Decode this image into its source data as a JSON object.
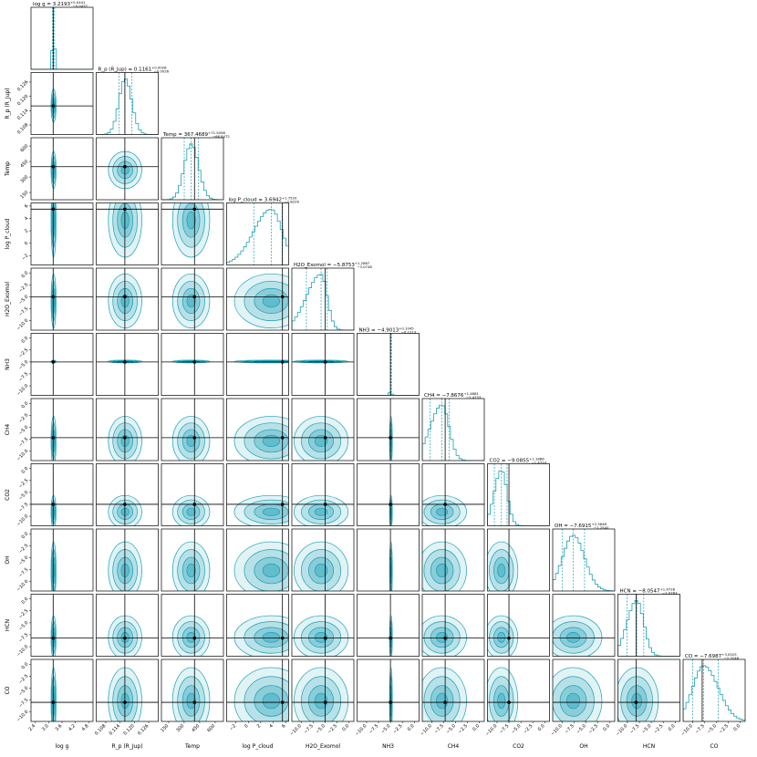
{
  "chart_data": {
    "type": "corner",
    "color": "#1a9fb5",
    "truth_color": "#000000",
    "params": [
      {
        "label": "log g",
        "title": "log g = 3.2193",
        "err_plus": "+0.0441",
        "err_minus": "−0.0437",
        "quantiles": [
          3.1756,
          3.2193,
          3.2634
        ],
        "truth": 3.2,
        "lim": [
          2.2,
          5.0
        ],
        "ticks": [
          {
            "value": 2.4,
            "label": "2.4"
          },
          {
            "value": 3.0,
            "label": "3.0"
          },
          {
            "value": 3.6,
            "label": "3.6"
          },
          {
            "value": 4.2,
            "label": "4.2"
          },
          {
            "value": 4.8,
            "label": "4.8"
          }
        ]
      },
      {
        "label": "R_p (R_Jup)",
        "title": "R_p (R_Jup) = 0.1161",
        "err_plus": "+0.0028",
        "err_minus": "−0.0026",
        "quantiles": [
          0.1135,
          0.1161,
          0.1189
        ],
        "truth": 0.116,
        "lim": [
          0.104,
          0.13
        ],
        "ticks": [
          {
            "value": 0.108,
            "label": "0.108"
          },
          {
            "value": 0.114,
            "label": "0.114"
          },
          {
            "value": 0.12,
            "label": "0.120"
          },
          {
            "value": 0.126,
            "label": "0.126"
          }
        ]
      },
      {
        "label": "Temp",
        "title": "Temp = 367.4689",
        "err_plus": "+71.5098",
        "err_minus": "−66.8472",
        "quantiles": [
          300.6217,
          367.4689,
          438.9787
        ],
        "truth": 400,
        "lim": [
          80,
          680
        ],
        "ticks": [
          {
            "value": 150,
            "label": "150"
          },
          {
            "value": 300,
            "label": "300"
          },
          {
            "value": 450,
            "label": "450"
          },
          {
            "value": 600,
            "label": "600"
          }
        ]
      },
      {
        "label": "log P_cloud",
        "title": "log P_cloud = 3.6942",
        "err_plus": "+1.7520",
        "err_minus": "−2.8226",
        "quantiles": [
          0.8716,
          3.6942,
          5.4462
        ],
        "truth": 5.5,
        "lim": [
          -3.5,
          6.5
        ],
        "ticks": [
          {
            "value": -2,
            "label": "−2"
          },
          {
            "value": 0,
            "label": "0"
          },
          {
            "value": 2,
            "label": "2"
          },
          {
            "value": 4,
            "label": "4"
          },
          {
            "value": 6,
            "label": "6"
          }
        ]
      },
      {
        "label": "H2O_Exomol",
        "title": "H2O_Exomol = −5.8753",
        "err_plus": "+1.2867",
        "err_minus": "−3.0748",
        "quantiles": [
          -8.9501,
          -5.8753,
          -4.5886
        ],
        "truth": -5,
        "lim": [
          -12,
          1
        ],
        "ticks": [
          {
            "value": -10,
            "label": "−10.0"
          },
          {
            "value": -7.5,
            "label": "−7.5"
          },
          {
            "value": -5,
            "label": "−5.0"
          },
          {
            "value": -2.5,
            "label": "−2.5"
          },
          {
            "value": 0,
            "label": "0.0"
          }
        ]
      },
      {
        "label": "NH3",
        "title": "NH3 = −4.9013",
        "err_plus": "+0.1045",
        "err_minus": "−0.1213",
        "quantiles": [
          -5.0226,
          -4.9013,
          -4.7968
        ],
        "truth": -5,
        "lim": [
          -12,
          1
        ],
        "ticks": [
          {
            "value": -10,
            "label": "−10.0"
          },
          {
            "value": -7.5,
            "label": "−7.5"
          },
          {
            "value": -5,
            "label": "−5.0"
          },
          {
            "value": -2.5,
            "label": "−2.5"
          },
          {
            "value": 0,
            "label": "0.0"
          }
        ]
      },
      {
        "label": "CH4",
        "title": "CH4 = −7.8676",
        "err_plus": "+1.4881",
        "err_minus": "−2.4733",
        "quantiles": [
          -10.3409,
          -7.8676,
          -6.3795
        ],
        "truth": -7.2,
        "lim": [
          -12,
          1
        ],
        "ticks": [
          {
            "value": -10,
            "label": "−10.0"
          },
          {
            "value": -7.5,
            "label": "−7.5"
          },
          {
            "value": -5,
            "label": "−5.0"
          },
          {
            "value": -2.5,
            "label": "−2.5"
          },
          {
            "value": 0,
            "label": "0.0"
          }
        ]
      },
      {
        "label": "CO2",
        "title": "CO2 = −9.0855",
        "err_plus": "+1.1886",
        "err_minus": "−1.4710",
        "quantiles": [
          -10.5565,
          -9.0855,
          -7.8969
        ],
        "truth": -7.5,
        "lim": [
          -12,
          1
        ],
        "ticks": [
          {
            "value": -10,
            "label": "−10.0"
          },
          {
            "value": -7.5,
            "label": "−7.5"
          },
          {
            "value": -5,
            "label": "−5.0"
          },
          {
            "value": -2.5,
            "label": "−2.5"
          },
          {
            "value": 0,
            "label": "0.0"
          }
        ]
      },
      {
        "label": "OH",
        "title": "OH = −7.6915",
        "err_plus": "+2.3648",
        "err_minus": "−2.2540",
        "quantiles": [
          -9.9455,
          -7.6915,
          -5.3267
        ],
        "truth": null,
        "lim": [
          -12,
          1
        ],
        "ticks": [
          {
            "value": -10,
            "label": "−10.0"
          },
          {
            "value": -7.5,
            "label": "−7.5"
          },
          {
            "value": -5,
            "label": "−5.0"
          },
          {
            "value": -2.5,
            "label": "−2.5"
          },
          {
            "value": 0,
            "label": "0.0"
          }
        ]
      },
      {
        "label": "HCN",
        "title": "HCN = −8.0547",
        "err_plus": "+1.4728",
        "err_minus": "−2.0263",
        "quantiles": [
          -10.081,
          -8.0547,
          -6.5819
        ],
        "truth": -8.2,
        "lim": [
          -12,
          1
        ],
        "ticks": [
          {
            "value": -10,
            "label": "−10.0"
          },
          {
            "value": -7.5,
            "label": "−7.5"
          },
          {
            "value": -5,
            "label": "−5.0"
          },
          {
            "value": -2.5,
            "label": "−2.5"
          },
          {
            "value": 0,
            "label": "0.0"
          }
        ]
      },
      {
        "label": "CO",
        "title": "CO = −7.6987",
        "err_plus": "+3.0525",
        "err_minus": "−2.3246",
        "quantiles": [
          -10.0233,
          -7.6987,
          -4.6462
        ],
        "truth": -8.0,
        "lim": [
          -12,
          1
        ],
        "ticks": [
          {
            "value": -10,
            "label": "−10.0"
          },
          {
            "value": -7.5,
            "label": "−7.5"
          },
          {
            "value": -5,
            "label": "−5.0"
          },
          {
            "value": -2.5,
            "label": "−2.5"
          },
          {
            "value": 0,
            "label": "0.0"
          }
        ]
      }
    ]
  }
}
